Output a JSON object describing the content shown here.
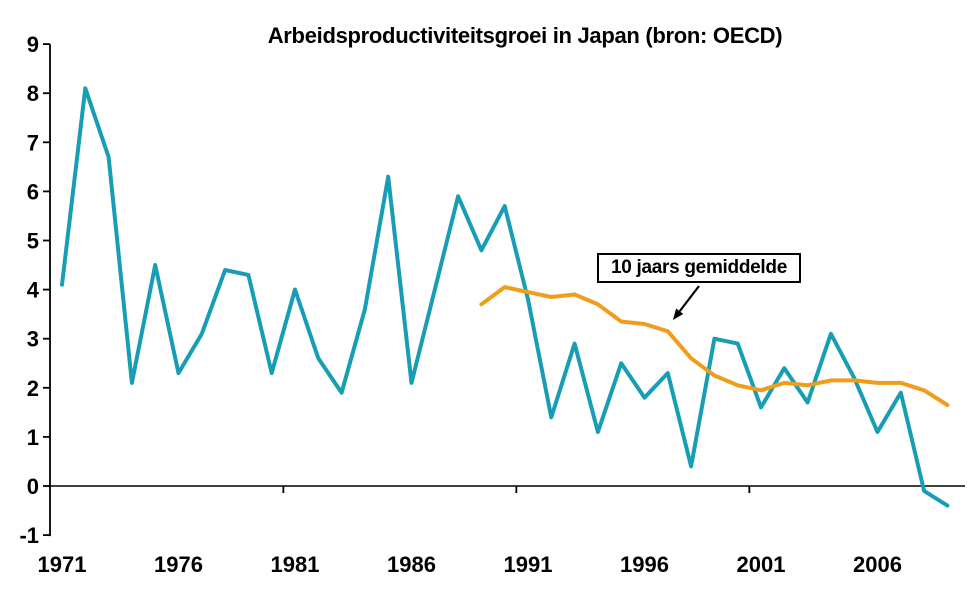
{
  "title": "Arbeidsproductiviteitsgroei in Japan (bron: OECD)",
  "annotation": {
    "label": "10 jaars gemiddelde",
    "arrow_from_xy": [
      699,
      286
    ],
    "arrow_to_xy": [
      673,
      320
    ]
  },
  "colors": {
    "yearly_line": "#179EB4",
    "average_line": "#F09C1C",
    "axis": "#000000",
    "background": "#FFFFFF"
  },
  "chart_data": {
    "type": "line",
    "x": [
      1971,
      1972,
      1973,
      1974,
      1975,
      1976,
      1977,
      1978,
      1979,
      1980,
      1981,
      1982,
      1983,
      1984,
      1985,
      1986,
      1987,
      1988,
      1989,
      1990,
      1991,
      1992,
      1993,
      1994,
      1995,
      1996,
      1997,
      1998,
      1999,
      2000,
      2001,
      2002,
      2003,
      2004,
      2005,
      2006,
      2007,
      2008,
      2009
    ],
    "series": [
      {
        "id": "yearly",
        "visible_label": "",
        "color_key": "yearly_line",
        "values": [
          4.1,
          8.1,
          6.7,
          2.1,
          4.5,
          2.3,
          3.1,
          4.4,
          4.3,
          2.3,
          4.0,
          2.6,
          1.9,
          3.6,
          6.3,
          2.1,
          4.0,
          5.9,
          4.8,
          5.7,
          3.8,
          1.4,
          2.9,
          1.1,
          2.5,
          1.8,
          2.3,
          0.4,
          3.0,
          2.9,
          1.6,
          2.4,
          1.7,
          3.1,
          2.2,
          1.1,
          1.9,
          -0.1,
          -0.4
        ]
      },
      {
        "id": "10yr-average",
        "visible_label": "10 jaars gemiddelde",
        "color_key": "average_line",
        "values": [
          null,
          null,
          null,
          null,
          null,
          null,
          null,
          null,
          null,
          null,
          null,
          null,
          null,
          null,
          null,
          null,
          null,
          null,
          3.7,
          4.05,
          3.95,
          3.85,
          3.9,
          3.7,
          3.35,
          3.3,
          3.15,
          2.6,
          2.25,
          2.05,
          1.95,
          2.1,
          2.05,
          2.15,
          2.15,
          2.1,
          2.1,
          1.95,
          1.65
        ]
      }
    ],
    "title": "Arbeidsproductiviteitsgroei in Japan (bron: OECD)",
    "xlabel": "",
    "ylabel": "",
    "ylim": [
      -1,
      9
    ],
    "xlim": [
      1971,
      2009
    ],
    "y_ticks": [
      9,
      8,
      7,
      6,
      5,
      4,
      3,
      2,
      1,
      0,
      -1
    ],
    "x_tick_labels": [
      "1971",
      "1976",
      "1981",
      "1986",
      "1991",
      "1996",
      "2001",
      "2006"
    ],
    "x_tick_label_years": [
      1971,
      1976,
      1981,
      1986,
      1991,
      1996,
      2001,
      2006
    ],
    "x_boundary_tick_years_after": [
      1980,
      1990,
      2000
    ],
    "grid": "horizontal zero line only",
    "legend_position": "none (arrow annotation labels the average line)"
  }
}
